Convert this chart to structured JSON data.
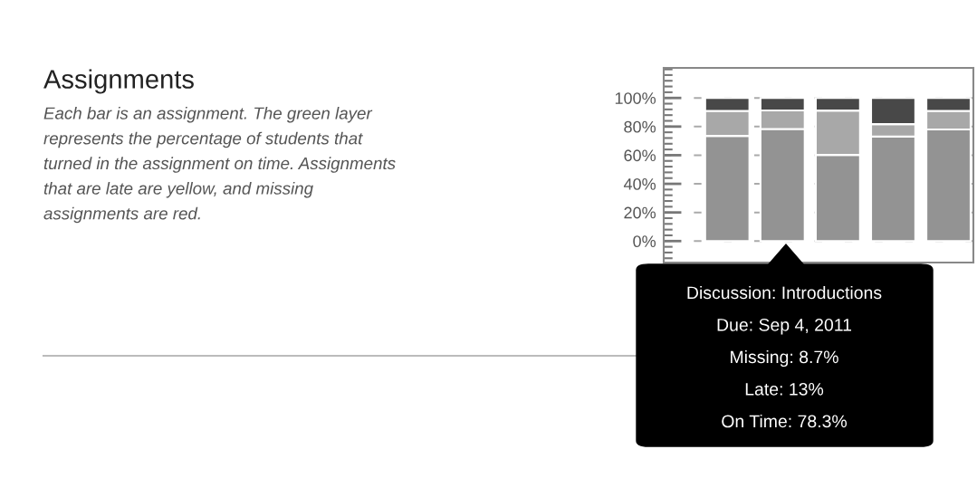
{
  "chart_data": {
    "type": "bar",
    "stacked": true,
    "title": "Assignments",
    "subtitle": "Each bar is an assignment. The green layer\nrepresents the percentage of students that\nturned in the assignment on time. Assignments\nthat are late are yellow, and missing\nassignments are red.",
    "categories": [
      null,
      null,
      null,
      null,
      null
    ],
    "series": [
      {
        "color": "#939393",
        "values": [
          73.5,
          78.3,
          60.2,
          73,
          78
        ]
      },
      {
        "color": "#a8a8a8",
        "values": [
          17.5,
          13,
          31,
          8.7,
          13
        ]
      },
      {
        "color": "#484848",
        "values": [
          9,
          8.7,
          8.8,
          18.3,
          9
        ]
      }
    ],
    "ylim": [
      -15,
      121
    ],
    "yticks": [
      {
        "value": 0,
        "label": "0%"
      },
      {
        "value": 20,
        "label": "20%"
      },
      {
        "value": 40,
        "label": "40%"
      },
      {
        "value": 60,
        "label": "60%"
      },
      {
        "value": 80,
        "label": "80%"
      },
      {
        "value": 100,
        "label": "100%"
      }
    ],
    "grid": "y",
    "annotations": [
      "Discussion: Introductions",
      "Due: Sep 4, 2011",
      "Missing: 8.7%",
      "Late: 13%",
      "On Time: 78.3%"
    ]
  }
}
